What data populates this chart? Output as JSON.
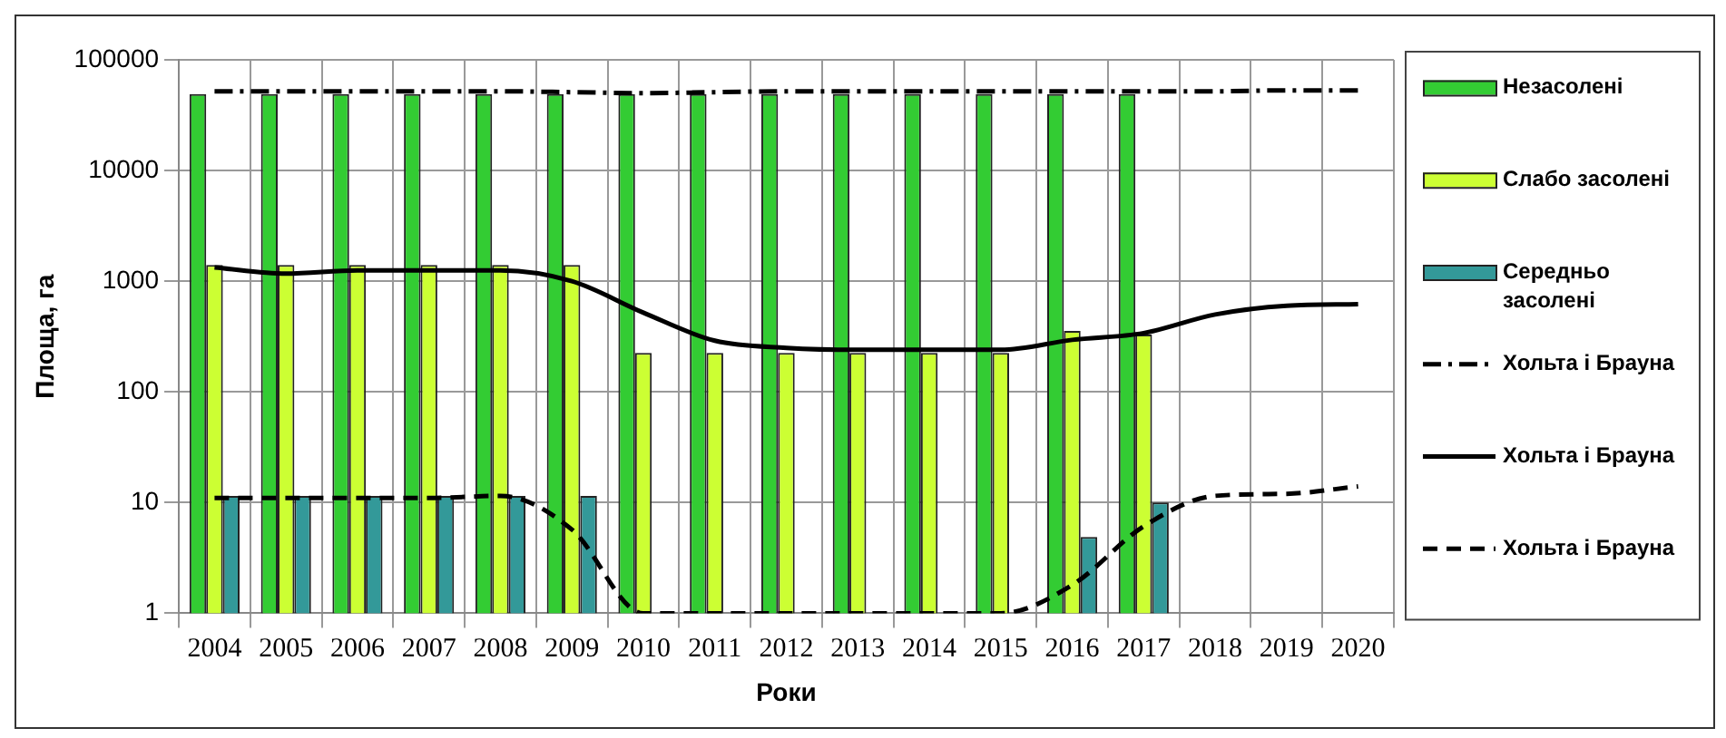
{
  "chart_data": {
    "type": "bar",
    "xlabel": "Роки",
    "ylabel": "Площа, га",
    "categories": [
      "2004",
      "2005",
      "2006",
      "2007",
      "2008",
      "2009",
      "2010",
      "2011",
      "2012",
      "2013",
      "2014",
      "2015",
      "2016",
      "2017",
      "2018",
      "2019",
      "2020"
    ],
    "series": [
      {
        "name": "Незасолені",
        "color": "#33cc33",
        "values": [
          49000,
          49000,
          49000,
          49000,
          49000,
          49000,
          49000,
          49000,
          49000,
          49000,
          49000,
          49000,
          49000,
          49000,
          null,
          null,
          null
        ]
      },
      {
        "name": "Слабо засолені",
        "color": "#ccff33",
        "values": [
          1400,
          1400,
          1400,
          1400,
          1400,
          1400,
          225,
          225,
          225,
          225,
          225,
          225,
          355,
          330,
          null,
          null,
          null
        ]
      },
      {
        "name": "Середньо засолені",
        "color": "#339999",
        "values": [
          11.5,
          11.5,
          11.5,
          11.5,
          11.5,
          11.5,
          null,
          null,
          null,
          null,
          null,
          null,
          4.9,
          10,
          null,
          null,
          null
        ]
      },
      {
        "name": "Хольта і Брауна",
        "type": "line",
        "color": "#000000",
        "line_style": "dashdot",
        "values": [
          52000,
          52000,
          52000,
          52000,
          52000,
          51000,
          50000,
          51000,
          52000,
          52000,
          52000,
          52000,
          52000,
          52000,
          52000,
          53000,
          53000
        ]
      },
      {
        "name": "Хольта і Брауна",
        "type": "line",
        "color": "#000000",
        "line_style": "solid",
        "values": [
          1330,
          1170,
          1250,
          1250,
          1250,
          1000,
          520,
          290,
          250,
          240,
          240,
          240,
          295,
          340,
          500,
          600,
          620
        ]
      },
      {
        "name": "Хольта і Брауна",
        "type": "line",
        "color": "#000000",
        "line_style": "dashed",
        "values": [
          11,
          11,
          11,
          11,
          11.5,
          5.7,
          1,
          1,
          1,
          1,
          1,
          1,
          1.8,
          6.1,
          11.5,
          12,
          14
        ]
      }
    ],
    "log": "y",
    "ylim": [
      1,
      100000
    ],
    "yticks": [
      1,
      10,
      100,
      1000,
      10000,
      100000
    ],
    "grid": true,
    "legend": "right",
    "marker": "none"
  }
}
